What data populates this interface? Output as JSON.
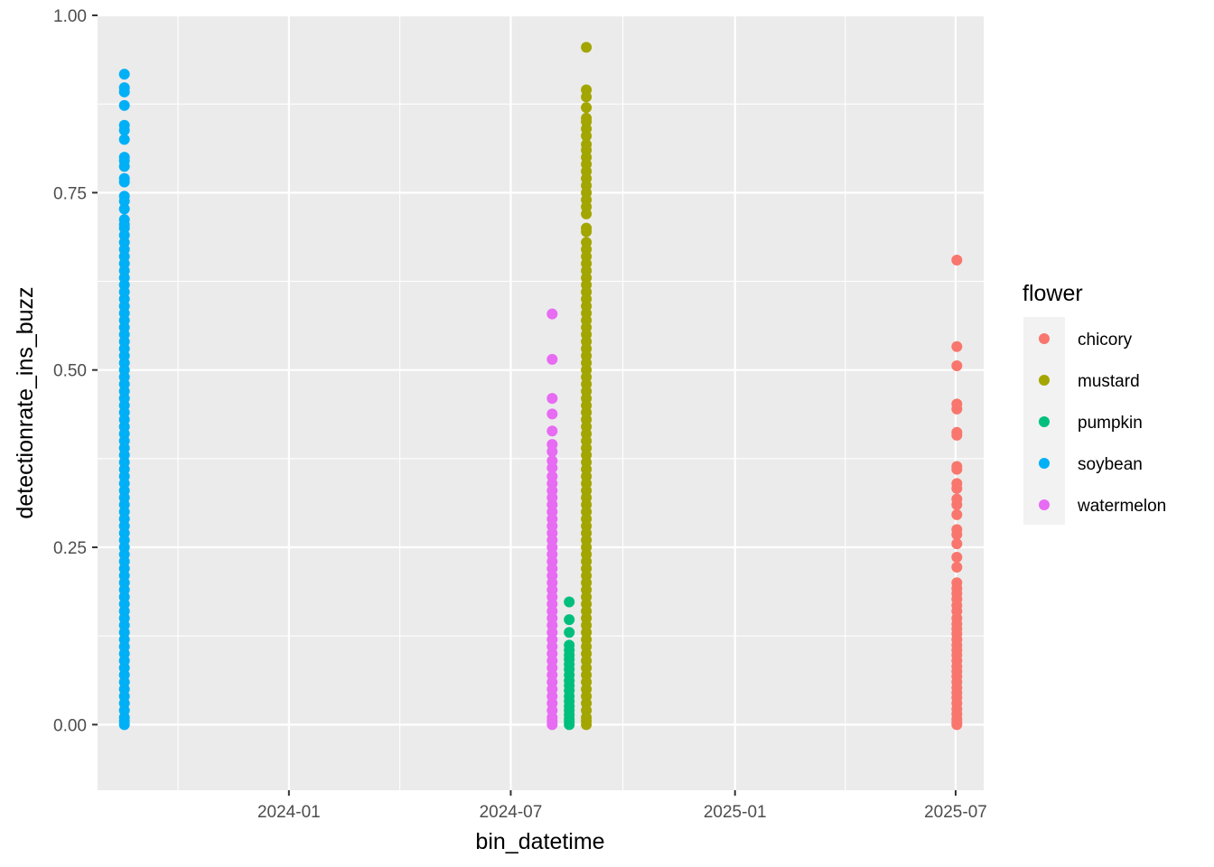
{
  "chart_data": {
    "type": "scatter",
    "xlabel": "bin_datetime",
    "ylabel": "detectionrate_ins_buzz",
    "xlim": [
      "2023-07-28",
      "2025-07-24"
    ],
    "ylim": [
      -0.0925,
      1.0
    ],
    "x_ticks": [
      "2024-01",
      "2024-07",
      "2025-01",
      "2025-07"
    ],
    "y_ticks": [
      "0.00",
      "0.25",
      "0.50",
      "0.75",
      "1.00"
    ],
    "y_tick_values": [
      0,
      0.25,
      0.5,
      0.75,
      1.0
    ],
    "grid": true,
    "legend": {
      "title": "flower",
      "position": "right"
    },
    "series": [
      {
        "name": "chicory",
        "color": "#F8766D",
        "x": "2025-07-02",
        "values": [
          0.655,
          0.533,
          0.506,
          0.452,
          0.445,
          0.412,
          0.408,
          0.364,
          0.36,
          0.34,
          0.333,
          0.318,
          0.31,
          0.296,
          0.275,
          0.268,
          0.255,
          0.236,
          0.222,
          0.2,
          0.192,
          0.185,
          0.177,
          0.168,
          0.16,
          0.15,
          0.142,
          0.135,
          0.128,
          0.12,
          0.112,
          0.105,
          0.098,
          0.09,
          0.082,
          0.075,
          0.068,
          0.06,
          0.052,
          0.045,
          0.038,
          0.03,
          0.022,
          0.015,
          0.008,
          0.003,
          0.0
        ]
      },
      {
        "name": "mustard",
        "color": "#A3A500",
        "x": "2024-09-01",
        "values": [
          0.955,
          0.895,
          0.885,
          0.87,
          0.855,
          0.85,
          0.84,
          0.83,
          0.818,
          0.81,
          0.8,
          0.79,
          0.78,
          0.77,
          0.76,
          0.75,
          0.74,
          0.73,
          0.72,
          0.7,
          0.695,
          0.68,
          0.67,
          0.66,
          0.65,
          0.64,
          0.63,
          0.62,
          0.61,
          0.6,
          0.59,
          0.58,
          0.57,
          0.56,
          0.55,
          0.54,
          0.53,
          0.52,
          0.51,
          0.5,
          0.49,
          0.48,
          0.47,
          0.46,
          0.45,
          0.44,
          0.43,
          0.42,
          0.41,
          0.4,
          0.39,
          0.38,
          0.37,
          0.36,
          0.35,
          0.34,
          0.33,
          0.32,
          0.31,
          0.3,
          0.29,
          0.28,
          0.27,
          0.26,
          0.25,
          0.24,
          0.23,
          0.22,
          0.21,
          0.2,
          0.19,
          0.18,
          0.17,
          0.16,
          0.15,
          0.14,
          0.13,
          0.12,
          0.11,
          0.1,
          0.09,
          0.08,
          0.07,
          0.06,
          0.05,
          0.04,
          0.03,
          0.02,
          0.01,
          0.005,
          0.0
        ]
      },
      {
        "name": "pumpkin",
        "color": "#00BF7D",
        "x": "2024-08-18",
        "values": [
          0.173,
          0.148,
          0.13,
          0.112,
          0.105,
          0.098,
          0.092,
          0.085,
          0.078,
          0.07,
          0.062,
          0.055,
          0.048,
          0.04,
          0.033,
          0.026,
          0.02,
          0.014,
          0.008,
          0.004,
          0.0
        ]
      },
      {
        "name": "soybean",
        "color": "#00B0F6",
        "x": "2023-08-19",
        "values": [
          0.917,
          0.898,
          0.892,
          0.873,
          0.845,
          0.838,
          0.825,
          0.8,
          0.795,
          0.787,
          0.77,
          0.765,
          0.745,
          0.738,
          0.727,
          0.712,
          0.705,
          0.7,
          0.69,
          0.68,
          0.67,
          0.66,
          0.65,
          0.64,
          0.63,
          0.62,
          0.61,
          0.6,
          0.59,
          0.58,
          0.57,
          0.56,
          0.55,
          0.54,
          0.53,
          0.52,
          0.51,
          0.5,
          0.49,
          0.48,
          0.47,
          0.46,
          0.45,
          0.44,
          0.43,
          0.42,
          0.41,
          0.4,
          0.39,
          0.38,
          0.37,
          0.36,
          0.35,
          0.34,
          0.33,
          0.32,
          0.31,
          0.3,
          0.29,
          0.28,
          0.27,
          0.26,
          0.25,
          0.24,
          0.23,
          0.22,
          0.21,
          0.2,
          0.19,
          0.18,
          0.17,
          0.16,
          0.15,
          0.14,
          0.13,
          0.12,
          0.11,
          0.1,
          0.09,
          0.08,
          0.07,
          0.06,
          0.05,
          0.04,
          0.03,
          0.02,
          0.01,
          0.005,
          0.0
        ]
      },
      {
        "name": "watermelon",
        "color": "#E76BF3",
        "x": "2024-08-04",
        "values": [
          0.579,
          0.515,
          0.46,
          0.438,
          0.414,
          0.395,
          0.385,
          0.372,
          0.362,
          0.35,
          0.34,
          0.33,
          0.32,
          0.31,
          0.3,
          0.29,
          0.28,
          0.27,
          0.26,
          0.25,
          0.24,
          0.23,
          0.22,
          0.21,
          0.2,
          0.19,
          0.18,
          0.17,
          0.16,
          0.15,
          0.14,
          0.13,
          0.12,
          0.11,
          0.1,
          0.09,
          0.08,
          0.07,
          0.06,
          0.05,
          0.04,
          0.03,
          0.02,
          0.01,
          0.005,
          0.0
        ]
      }
    ]
  }
}
